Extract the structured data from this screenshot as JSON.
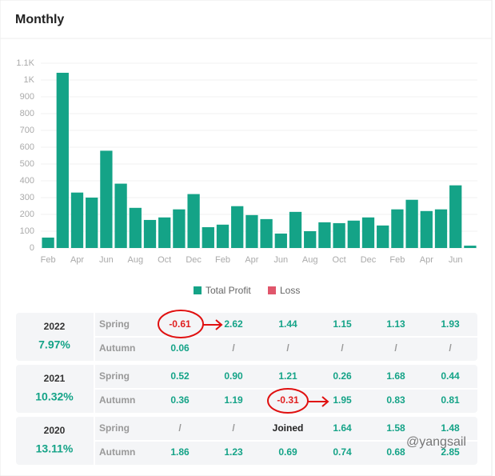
{
  "header": {
    "title": "Monthly"
  },
  "chart_data": {
    "type": "bar",
    "categories": [
      "Feb",
      null,
      "Apr",
      null,
      "Jun",
      null,
      "Aug",
      null,
      "Oct",
      null,
      "Dec",
      null,
      "Feb",
      null,
      "Apr",
      null,
      "Jun",
      null,
      "Aug",
      null,
      "Oct",
      null,
      "Dec",
      null,
      "Feb",
      null,
      "Apr",
      null,
      "Jun",
      null
    ],
    "series": [
      {
        "name": "Total Profit",
        "color": "#14a387",
        "values": [
          62,
          1043,
          330,
          300,
          579,
          383,
          239,
          167,
          182,
          230,
          321,
          124,
          139,
          249,
          196,
          172,
          86,
          215,
          100,
          153,
          148,
          163,
          182,
          134,
          230,
          287,
          220,
          230,
          373,
          14
        ]
      },
      {
        "name": "Loss",
        "color": "#e0566b",
        "values": [
          null,
          null,
          null,
          null,
          null,
          null,
          null,
          null,
          null,
          null,
          null,
          null,
          null,
          null,
          null,
          null,
          null,
          null,
          null,
          null,
          null,
          null,
          null,
          null,
          null,
          null,
          null,
          null,
          null,
          null
        ]
      }
    ],
    "ylim": [
      0,
      1100
    ],
    "yticks": [
      0,
      100,
      200,
      300,
      400,
      500,
      600,
      700,
      800,
      900,
      {
        "value": 1000,
        "label": "1K"
      },
      {
        "value": 1100,
        "label": "1.1K"
      }
    ],
    "grid": true,
    "legend": "bottom"
  },
  "tables": [
    {
      "year": "2022",
      "return": "7.97%",
      "rows": [
        {
          "label": "Spring",
          "cells": [
            "-0.61",
            "2.62",
            "1.44",
            "1.15",
            "1.13",
            "1.93"
          ]
        },
        {
          "label": "Autumn",
          "cells": [
            "0.06",
            "/",
            "/",
            "/",
            "/",
            "/"
          ]
        }
      ]
    },
    {
      "year": "2021",
      "return": "10.32%",
      "rows": [
        {
          "label": "Spring",
          "cells": [
            "0.52",
            "0.90",
            "1.21",
            "0.26",
            "1.68",
            "0.44"
          ]
        },
        {
          "label": "Autumn",
          "cells": [
            "0.36",
            "1.19",
            "-0.31",
            "1.95",
            "0.83",
            "0.81"
          ]
        }
      ]
    },
    {
      "year": "2020",
      "return": "13.11%",
      "rows": [
        {
          "label": "Spring",
          "cells": [
            "/",
            "/",
            "Joined",
            "1.64",
            "1.58",
            "1.48"
          ]
        },
        {
          "label": "Autumn",
          "cells": [
            "1.86",
            "1.23",
            "0.69",
            "0.74",
            "0.68",
            "2.85"
          ]
        }
      ]
    }
  ],
  "watermark": "@yangsail"
}
